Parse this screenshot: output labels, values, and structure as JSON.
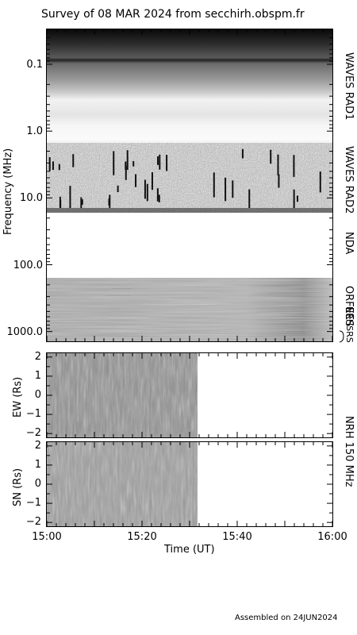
{
  "title": "Survey of 08 MAR 2024 from secchirh.obspm.fr",
  "footer": "Assembled on 24JUN2024",
  "chart_data": [
    {
      "type": "heatmap",
      "ylabel": "Frequency (MHz)",
      "yscale": "log",
      "ylim": [
        0.03,
        1400
      ],
      "y_ticks": [
        "0.1",
        "1.0",
        "10.0",
        "100.0",
        "1000.0"
      ],
      "y_tick_values": [
        0.1,
        1,
        10,
        100,
        1000
      ],
      "xlim": [
        "15:00",
        "16:00"
      ],
      "bands": [
        {
          "name": "WAVES RAD1",
          "freq_range": [
            0.03,
            0.95
          ],
          "data_until": "16:00"
        },
        {
          "name": "WAVES RAD2",
          "freq_range": [
            0.95,
            13
          ],
          "data_until": "16:00"
        },
        {
          "name": "NDA",
          "freq_range": [
            13,
            70
          ],
          "data_until": null
        },
        {
          "name": "ORFEES",
          "freq_range": [
            70,
            1000
          ],
          "data_until": "16:00"
        },
        {
          "name": "NRHSRS",
          "freq_range": [
            1000,
            1400
          ],
          "data_until": "16:00"
        }
      ]
    },
    {
      "type": "heatmap",
      "ylabel": "EW (Rs)",
      "ylim": [
        -2.2,
        2.2
      ],
      "y_ticks": [
        "2",
        "1",
        "0",
        "−1",
        "−2"
      ],
      "y_tick_values": [
        2,
        1,
        0,
        -1,
        -2
      ],
      "xlim": [
        "15:00",
        "16:00"
      ],
      "data_until": "15:32"
    },
    {
      "type": "heatmap",
      "ylabel": "SN (Rs)",
      "ylim": [
        -2.2,
        2.2
      ],
      "y_ticks": [
        "2",
        "1",
        "0",
        "−1",
        "−2"
      ],
      "y_tick_values": [
        2,
        1,
        0,
        -1,
        -2
      ],
      "xlim": [
        "15:00",
        "16:00"
      ],
      "data_until": "15:32"
    }
  ],
  "nrh_label": "NRH 150 MHz",
  "xlabel": "Time (UT)",
  "x_ticks": [
    "15:00",
    "15:20",
    "15:40",
    "16:00"
  ],
  "x_tick_minutes": [
    0,
    20,
    40,
    60
  ]
}
